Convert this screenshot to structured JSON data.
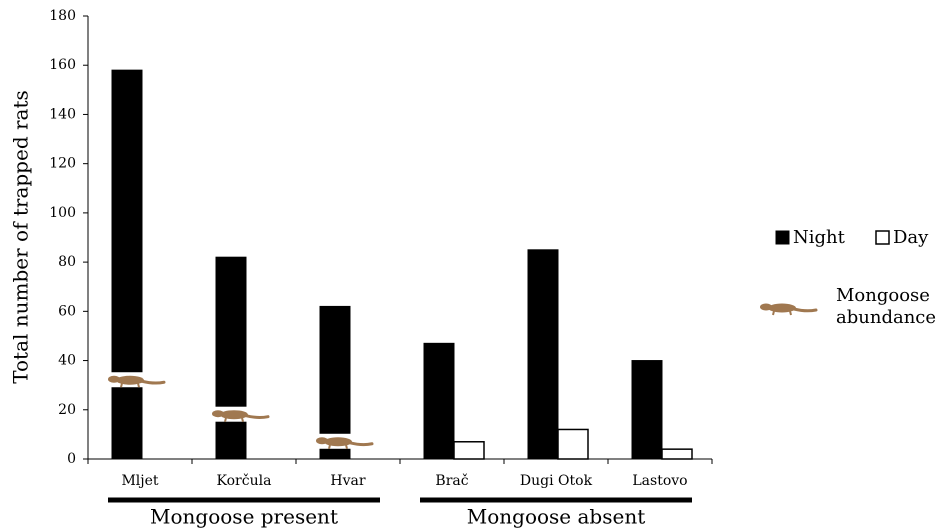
{
  "chart_data": {
    "type": "bar",
    "y_label": "Total number of trapped rats",
    "categories": [
      "Mljet",
      "Korčula",
      "Hvar",
      "Brač",
      "Dugi Otok",
      "Lastovo"
    ],
    "series": [
      {
        "name": "Night",
        "color": "#000000",
        "values": [
          158,
          82,
          62,
          47,
          85,
          40
        ]
      },
      {
        "name": "Day",
        "color": "#ffffff",
        "values": [
          0,
          0,
          0,
          7,
          12,
          4
        ]
      },
      {
        "name": "Mongoose abundance",
        "color": "#a07850",
        "values": [
          32,
          18,
          7,
          null,
          null,
          null
        ]
      }
    ],
    "groups": [
      {
        "label": "Mongoose present",
        "categories": [
          "Mljet",
          "Korčula",
          "Hvar"
        ]
      },
      {
        "label": "Mongoose absent",
        "categories": [
          "Brač",
          "Dugi Otok",
          "Lastovo"
        ]
      }
    ],
    "ylim": [
      0,
      180
    ],
    "yticks": [
      0,
      20,
      40,
      60,
      80,
      100,
      120,
      140,
      160,
      180
    ],
    "grid": false
  }
}
